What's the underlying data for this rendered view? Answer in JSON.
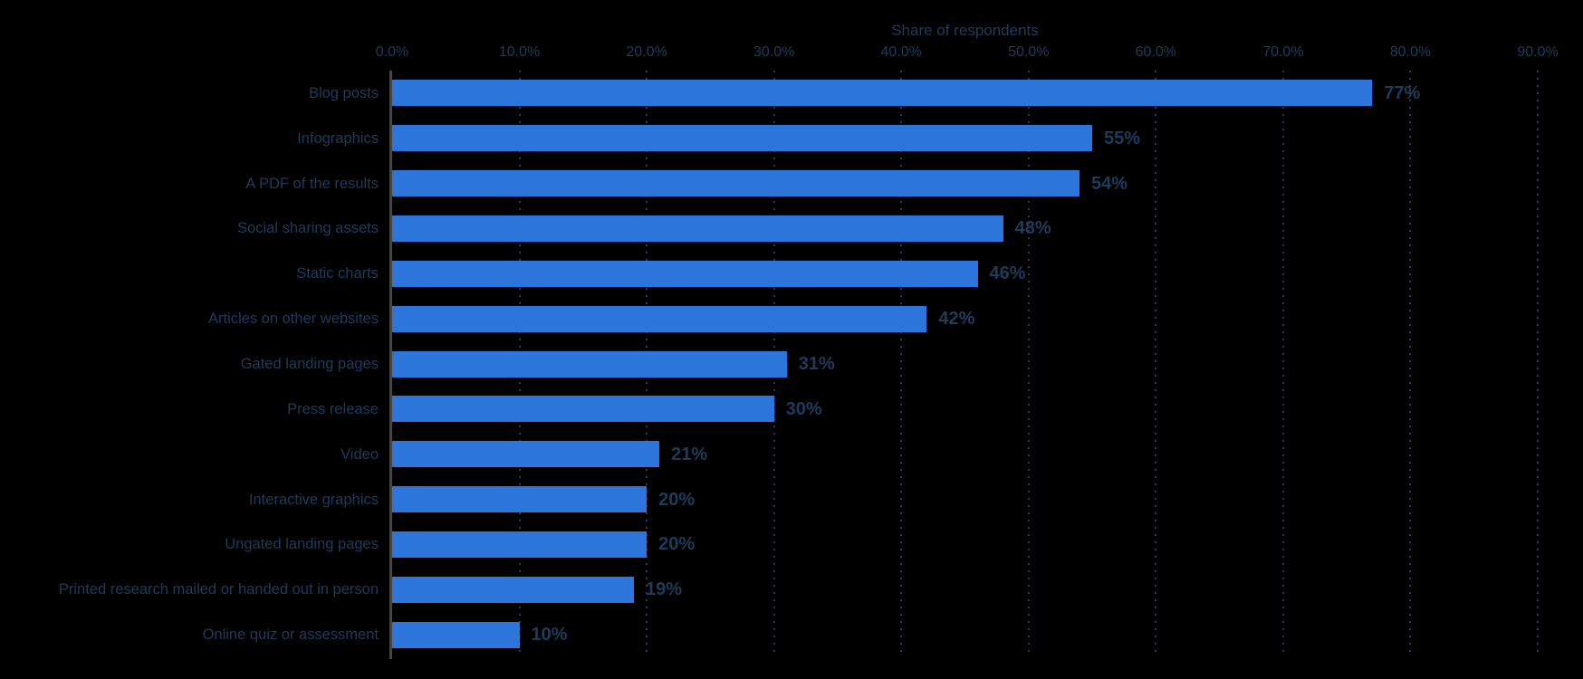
{
  "chart_data": {
    "type": "bar",
    "orientation": "horizontal",
    "title": "Share of respondents",
    "categories": [
      "Blog posts",
      "Infographics",
      "A PDF of the results",
      "Social sharing assets",
      "Static charts",
      "Articles on other websites",
      "Gated landing pages",
      "Press release",
      "Video",
      "Interactive graphics",
      "Ungated landing pages",
      "Printed research mailed or handed out in person",
      "Online quiz or assessment"
    ],
    "values": [
      77,
      55,
      54,
      48,
      46,
      42,
      31,
      30,
      21,
      20,
      20,
      19,
      10
    ],
    "value_labels": [
      "77%",
      "55%",
      "54%",
      "48%",
      "46%",
      "42%",
      "31%",
      "30%",
      "21%",
      "20%",
      "20%",
      "19%",
      "10%"
    ],
    "x_ticks": [
      "0.0%",
      "10.0%",
      "20.0%",
      "30.0%",
      "40.0%",
      "50.0%",
      "60.0%",
      "70.0%",
      "80.0%",
      "90.0%"
    ],
    "xlim": [
      0,
      90
    ],
    "grid": "dotted-vertical",
    "legend": "none",
    "colors": {
      "background": "#000000",
      "bar": "#2c75db",
      "text": "#1d3c5a",
      "gridline": "#1e3d60",
      "axis_line": "#454545"
    }
  }
}
